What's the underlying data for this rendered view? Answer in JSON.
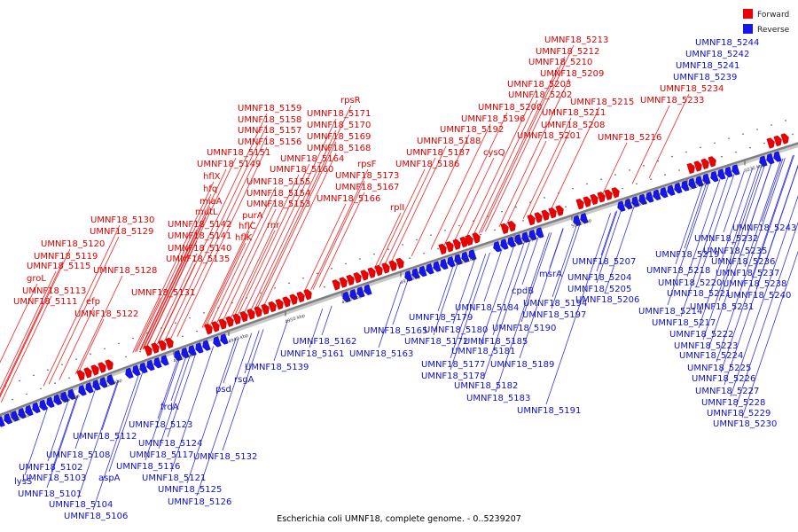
{
  "caption": "Escherichia coli UMNF18, complete genome. - 0..5239207",
  "legend": [
    {
      "label": "Forward",
      "color": "#ee0000"
    },
    {
      "label": "Reverse",
      "color": "#1515ee"
    }
  ],
  "colors": {
    "forward": "#ee0000",
    "reverse": "#1515ee",
    "backbone": "#808080",
    "forward_label": "#dd0000",
    "reverse_label": "#1010cc"
  },
  "ticks": [
    "4900 kbp",
    "4910 kbp",
    "4920 kbp",
    "4930 kbp",
    "4940 kbp",
    "4950 kbp",
    "4960 kbp",
    "4970 kbp",
    "4980 kbp",
    "4990 kbp",
    "5000 kbp",
    "5010 kbp",
    "5020 kbp",
    "5030 kbp"
  ],
  "forward_labels": [
    "UMNF18_5111",
    "UMNF18_5113",
    "groL",
    "UMNF18_5115",
    "UMNF18_5119",
    "UMNF18_5120",
    "efp",
    "UMNF18_5122",
    "UMNF18_5128",
    "UMNF18_5129",
    "UMNF18_5130",
    "UMNF18_5131",
    "UMNF18_5135",
    "UMNF18_5140",
    "UMNF18_5141",
    "UMNF18_5142",
    "mutL",
    "miaA",
    "hfq",
    "hflX",
    "UMNF18_5149",
    "UMNF18_5151",
    "hflK",
    "hflC",
    "purA",
    "UMNF18_5153",
    "UMNF18_5154",
    "UMNF18_5155",
    "UMNF18_5156",
    "UMNF18_5157",
    "UMNF18_5158",
    "UMNF18_5159",
    "UMNF18_5160",
    "rnr",
    "UMNF18_5164",
    "UMNF18_5166",
    "UMNF18_5167",
    "UMNF18_5168",
    "UMNF18_5169",
    "UMNF18_5170",
    "UMNF18_5171",
    "rpsR",
    "rpsF",
    "UMNF18_5173",
    "rplI",
    "UMNF18_5186",
    "UMNF18_5187",
    "UMNF18_5188",
    "UMNF18_5192",
    "UMNF18_5196",
    "cysQ",
    "UMNF18_5200",
    "UMNF18_5201",
    "UMNF18_5202",
    "UMNF18_5203",
    "UMNF18_5208",
    "UMNF18_5209",
    "UMNF18_5210",
    "UMNF18_5211",
    "UMNF18_5212",
    "UMNF18_5213",
    "UMNF18_5215",
    "UMNF18_5216",
    "UMNF18_5233",
    "UMNF18_5234"
  ],
  "reverse_labels": [
    "lysS",
    "UMNF18_5101",
    "UMNF18_5102",
    "UMNF18_5103",
    "UMNF18_5104",
    "UMNF18_5106",
    "UMNF18_5108",
    "aspA",
    "UMNF18_5112",
    "UMNF18_5116",
    "UMNF18_5117",
    "UMNF18_5121",
    "UMNF18_5123",
    "UMNF18_5124",
    "UMNF18_5125",
    "UMNF18_5126",
    "frdA",
    "UMNF18_5132",
    "psd",
    "rsgA",
    "UMNF18_5139",
    "UMNF18_5161",
    "UMNF18_5162",
    "UMNF18_5163",
    "UMNF18_5165",
    "UMNF18_5172",
    "UMNF18_5177",
    "UMNF18_5178",
    "UMNF18_5179",
    "UMNF18_5180",
    "UMNF18_5181",
    "UMNF18_5182",
    "UMNF18_5183",
    "UMNF18_5184",
    "UMNF18_5185",
    "UMNF18_5189",
    "UMNF18_5190",
    "UMNF18_5191",
    "cpdB",
    "UMNF18_5194",
    "UMNF18_5197",
    "msrA",
    "UMNF18_5204",
    "UMNF18_5205",
    "UMNF18_5206",
    "UMNF18_5207",
    "UMNF18_5214",
    "UMNF18_5217",
    "UMNF18_5218",
    "UMNF18_5219",
    "UMNF18_5220",
    "UMNF18_5221",
    "UMNF18_5222",
    "UMNF18_5223",
    "UMNF18_5224",
    "UMNF18_5225",
    "UMNF18_5226",
    "UMNF18_5227",
    "UMNF18_5228",
    "UMNF18_5229",
    "UMNF18_5230",
    "UMNF18_5231",
    "UMNF18_5232",
    "UMNF18_5235",
    "UMNF18_5236",
    "UMNF18_5237",
    "UMNF18_5238",
    "UMNF18_5239",
    "UMNF18_5240",
    "UMNF18_5241",
    "UMNF18_5242",
    "UMNF18_5243",
    "UMNF18_5244"
  ]
}
